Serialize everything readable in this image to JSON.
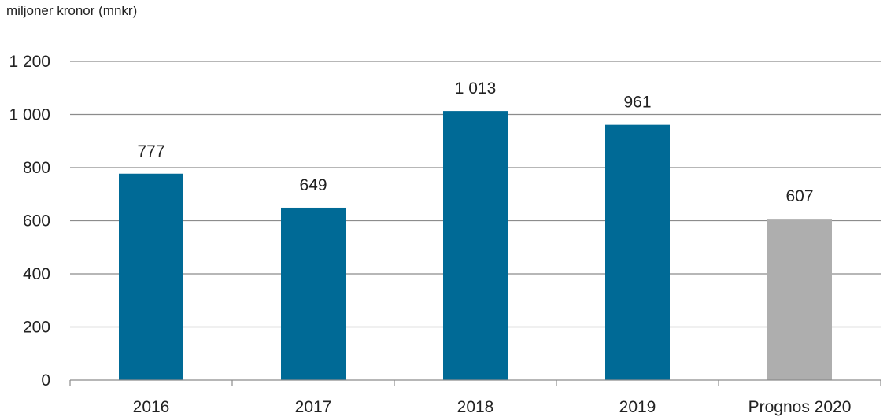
{
  "chart_data": {
    "type": "bar",
    "ylabel": "miljoner kronor (mnkr)",
    "categories": [
      "2016",
      "2017",
      "2018",
      "2019",
      "Prognos 2020"
    ],
    "values": [
      777,
      649,
      1013,
      961,
      607
    ],
    "value_labels": [
      "777",
      "649",
      "1 013",
      "961",
      "607"
    ],
    "bar_colors": [
      "#006a96",
      "#006a96",
      "#006a96",
      "#006a96",
      "#aeaeae"
    ],
    "ylim": [
      0,
      1200
    ],
    "yticks": [
      0,
      200,
      400,
      600,
      800,
      1000,
      1200
    ],
    "ytick_labels": [
      "0",
      "200",
      "400",
      "600",
      "800",
      "1 000",
      "1 200"
    ],
    "grid": true,
    "gridline_color": "#8c8c8c"
  }
}
